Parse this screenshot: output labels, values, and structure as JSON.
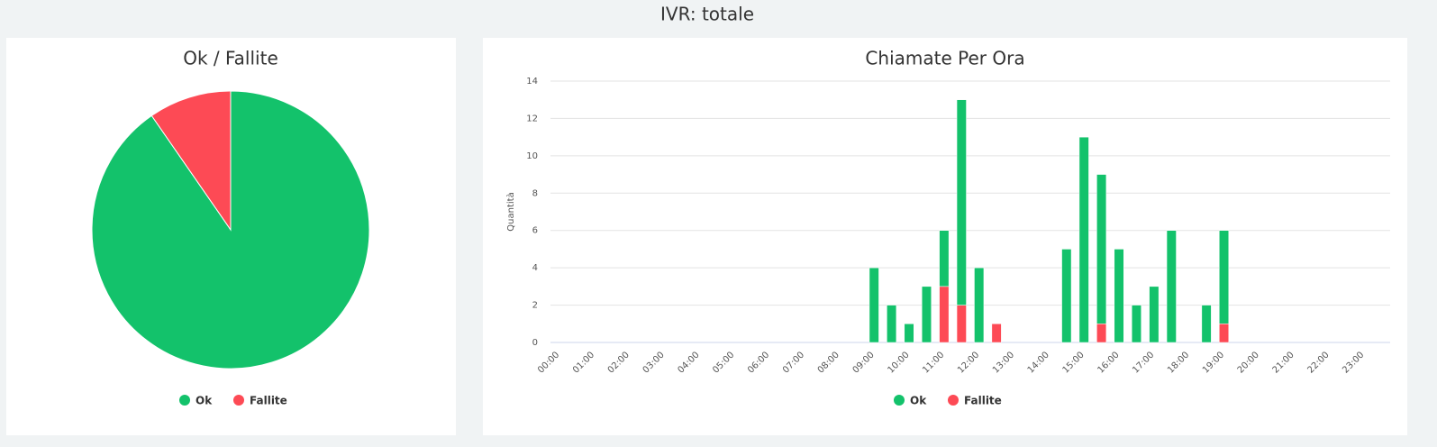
{
  "header": {
    "title": "IVR: totale"
  },
  "chart_data": [
    {
      "type": "pie",
      "title": "Ok / Fallite",
      "categories": [
        "Ok",
        "Fallite"
      ],
      "values": [
        75,
        8
      ],
      "colors": [
        "#13c26b",
        "#fd4a55"
      ],
      "legend": "bottom"
    },
    {
      "type": "bar",
      "stacked": true,
      "title": "Chiamate Per Ora",
      "y_label": "Quantità",
      "categories": [
        "00:00",
        null,
        "01:00",
        null,
        "02:00",
        null,
        "03:00",
        null,
        "04:00",
        null,
        "05:00",
        null,
        "06:00",
        null,
        "07:00",
        null,
        "08:00",
        null,
        "09:00",
        null,
        "10:00",
        null,
        "11:00",
        null,
        "12:00",
        null,
        "13:00",
        null,
        "14:00",
        null,
        "15:00",
        null,
        "16:00",
        null,
        "17:00",
        null,
        "18:00",
        null,
        "19:00",
        null,
        "20:00",
        null,
        "21:00",
        null,
        "22:00",
        null,
        "23:00",
        null
      ],
      "series": [
        {
          "name": "Ok",
          "color": "#13c26b",
          "values": [
            0,
            0,
            0,
            0,
            0,
            0,
            0,
            0,
            0,
            0,
            0,
            0,
            0,
            0,
            0,
            0,
            0,
            0,
            4,
            2,
            1,
            3,
            3,
            11,
            4,
            0,
            0,
            0,
            0,
            5,
            11,
            8,
            5,
            2,
            3,
            6,
            0,
            2,
            5,
            0,
            0,
            0,
            0,
            0,
            0,
            0,
            0,
            0
          ]
        },
        {
          "name": "Fallite",
          "color": "#fd4a55",
          "values": [
            0,
            0,
            0,
            0,
            0,
            0,
            0,
            0,
            0,
            0,
            0,
            0,
            0,
            0,
            0,
            0,
            0,
            0,
            0,
            0,
            0,
            0,
            3,
            2,
            0,
            1,
            0,
            0,
            0,
            0,
            0,
            1,
            0,
            0,
            0,
            0,
            0,
            0,
            1,
            0,
            0,
            0,
            0,
            0,
            0,
            0,
            0,
            0
          ]
        }
      ],
      "ylim": [
        0,
        14
      ],
      "yticks": [
        0,
        2,
        4,
        6,
        8,
        10,
        12,
        14
      ],
      "grid": true,
      "legend": "bottom"
    }
  ]
}
